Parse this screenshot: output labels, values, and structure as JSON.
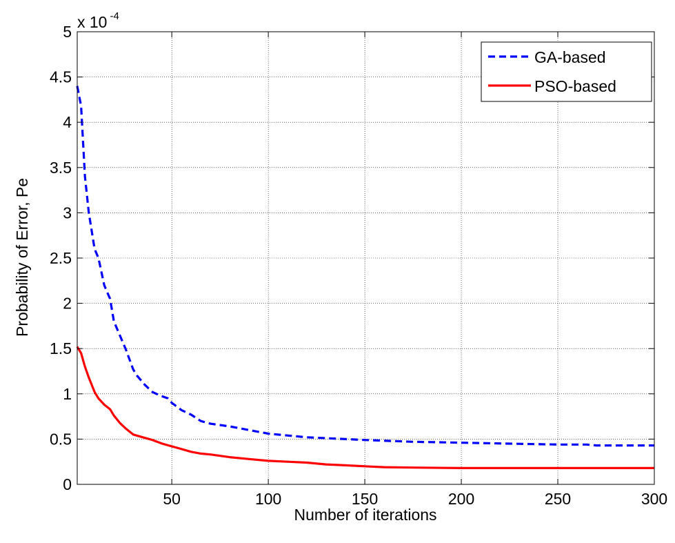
{
  "chart_data": {
    "type": "line",
    "xlabel": "Number of iterations",
    "ylabel": "Probability of Error, Pe",
    "y_multiplier": {
      "base": "x 10",
      "exponent": "-4"
    },
    "xlim": [
      1,
      300
    ],
    "ylim": [
      0,
      5
    ],
    "xticks": [
      50,
      100,
      150,
      200,
      250,
      300
    ],
    "xtick_labels": [
      "50",
      "100",
      "150",
      "200",
      "250",
      "300"
    ],
    "yticks": [
      0,
      0.5,
      1,
      1.5,
      2,
      2.5,
      3,
      3.5,
      4,
      4.5,
      5
    ],
    "ytick_labels": [
      "0",
      "0.5",
      "1",
      "1.5",
      "2",
      "2.5",
      "3",
      "3.5",
      "4",
      "4.5",
      "5"
    ],
    "grid": true,
    "legend_position": "top-right",
    "series": [
      {
        "name": "GA-based",
        "color": "#0000ff",
        "style": "dashed",
        "x": [
          1,
          3,
          5,
          7,
          10,
          12,
          15,
          18,
          20,
          23,
          26,
          30,
          32,
          36,
          40,
          44,
          48,
          50,
          55,
          60,
          65,
          70,
          80,
          90,
          100,
          110,
          120,
          130,
          140,
          150,
          175,
          200,
          225,
          250,
          265,
          270,
          300
        ],
        "y": [
          4.4,
          4.18,
          3.4,
          3.0,
          2.6,
          2.5,
          2.2,
          2.05,
          1.8,
          1.65,
          1.5,
          1.27,
          1.2,
          1.1,
          1.02,
          0.98,
          0.95,
          0.9,
          0.82,
          0.77,
          0.7,
          0.67,
          0.64,
          0.6,
          0.56,
          0.54,
          0.52,
          0.51,
          0.5,
          0.49,
          0.47,
          0.46,
          0.45,
          0.44,
          0.44,
          0.43,
          0.43
        ]
      },
      {
        "name": "PSO-based",
        "color": "#ff0000",
        "style": "solid",
        "x": [
          1,
          3,
          5,
          7,
          10,
          12,
          15,
          18,
          20,
          23,
          26,
          30,
          35,
          40,
          45,
          50,
          55,
          60,
          65,
          70,
          80,
          90,
          100,
          110,
          120,
          130,
          140,
          150,
          160,
          175,
          200,
          225,
          250,
          275,
          300
        ],
        "y": [
          1.52,
          1.45,
          1.3,
          1.18,
          1.02,
          0.95,
          0.88,
          0.83,
          0.76,
          0.68,
          0.62,
          0.55,
          0.52,
          0.49,
          0.45,
          0.42,
          0.39,
          0.36,
          0.34,
          0.33,
          0.3,
          0.28,
          0.26,
          0.25,
          0.24,
          0.22,
          0.21,
          0.2,
          0.19,
          0.185,
          0.18,
          0.18,
          0.18,
          0.18,
          0.18
        ]
      }
    ]
  }
}
